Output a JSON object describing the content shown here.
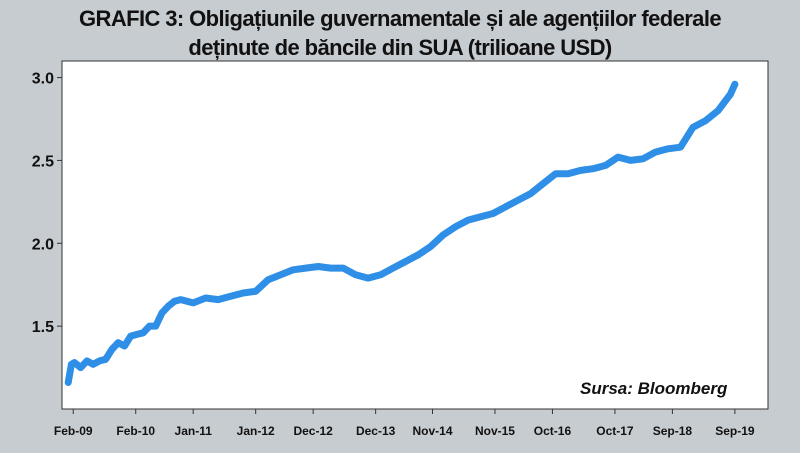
{
  "chart_data": {
    "type": "line",
    "title_line1": "GRAFIC 3: Obligațiunile guvernamentale și ale agențiilor federale",
    "title_line2": "deținute de băncile din SUA (trilioane USD)",
    "source": "Sursa:  Bloomberg",
    "ylim": [
      1.0,
      3.1
    ],
    "y_ticks": [
      {
        "label": "3.0",
        "value": 3.0
      },
      {
        "label": "2.5",
        "value": 2.5
      },
      {
        "label": "2.0",
        "value": 2.0
      },
      {
        "label": "1.5",
        "value": 1.5
      }
    ],
    "x_range": [
      2008.9,
      2020.2
    ],
    "x_ticks": [
      {
        "label": "Feb-09",
        "x": 2009.08
      },
      {
        "label": "Feb-10",
        "x": 2010.08
      },
      {
        "label": "Jan-11",
        "x": 2011.0
      },
      {
        "label": "Jan-12",
        "x": 2012.0
      },
      {
        "label": "Dec-12",
        "x": 2012.92
      },
      {
        "label": "Dec-13",
        "x": 2013.92
      },
      {
        "label": "Nov-14",
        "x": 2014.83
      },
      {
        "label": "Nov-15",
        "x": 2015.83
      },
      {
        "label": "Oct-16",
        "x": 2016.75
      },
      {
        "label": "Oct-17",
        "x": 2017.75
      },
      {
        "label": "Sep-18",
        "x": 2018.67
      },
      {
        "label": "Sep-19",
        "x": 2019.67
      }
    ],
    "grid": false,
    "legend": "none",
    "line_color": "#2f8fe6",
    "series": [
      {
        "x": [
          2009.0,
          2009.05,
          2009.1,
          2009.2,
          2009.3,
          2009.4,
          2009.5,
          2009.6,
          2009.7,
          2009.8,
          2009.9,
          2010.0,
          2010.1,
          2010.2,
          2010.3,
          2010.4,
          2010.5,
          2010.6,
          2010.7,
          2010.8,
          2011.0,
          2011.2,
          2011.4,
          2011.6,
          2011.8,
          2012.0,
          2012.2,
          2012.4,
          2012.6,
          2012.8,
          2013.0,
          2013.2,
          2013.4,
          2013.6,
          2013.8,
          2014.0,
          2014.2,
          2014.4,
          2014.6,
          2014.8,
          2015.0,
          2015.2,
          2015.4,
          2015.6,
          2015.8,
          2016.0,
          2016.2,
          2016.4,
          2016.6,
          2016.8,
          2017.0,
          2017.2,
          2017.4,
          2017.6,
          2017.8,
          2018.0,
          2018.2,
          2018.4,
          2018.6,
          2018.8,
          2019.0,
          2019.2,
          2019.4,
          2019.6,
          2019.67
        ],
        "values": [
          1.16,
          1.27,
          1.28,
          1.25,
          1.29,
          1.27,
          1.29,
          1.3,
          1.36,
          1.4,
          1.38,
          1.44,
          1.45,
          1.46,
          1.5,
          1.5,
          1.58,
          1.62,
          1.65,
          1.66,
          1.64,
          1.67,
          1.66,
          1.68,
          1.7,
          1.71,
          1.78,
          1.81,
          1.84,
          1.85,
          1.86,
          1.85,
          1.85,
          1.81,
          1.79,
          1.81,
          1.85,
          1.89,
          1.93,
          1.98,
          2.05,
          2.1,
          2.14,
          2.16,
          2.18,
          2.22,
          2.26,
          2.3,
          2.36,
          2.42,
          2.42,
          2.44,
          2.45,
          2.47,
          2.52,
          2.5,
          2.51,
          2.55,
          2.57,
          2.58,
          2.7,
          2.74,
          2.8,
          2.9,
          2.96
        ]
      }
    ]
  }
}
